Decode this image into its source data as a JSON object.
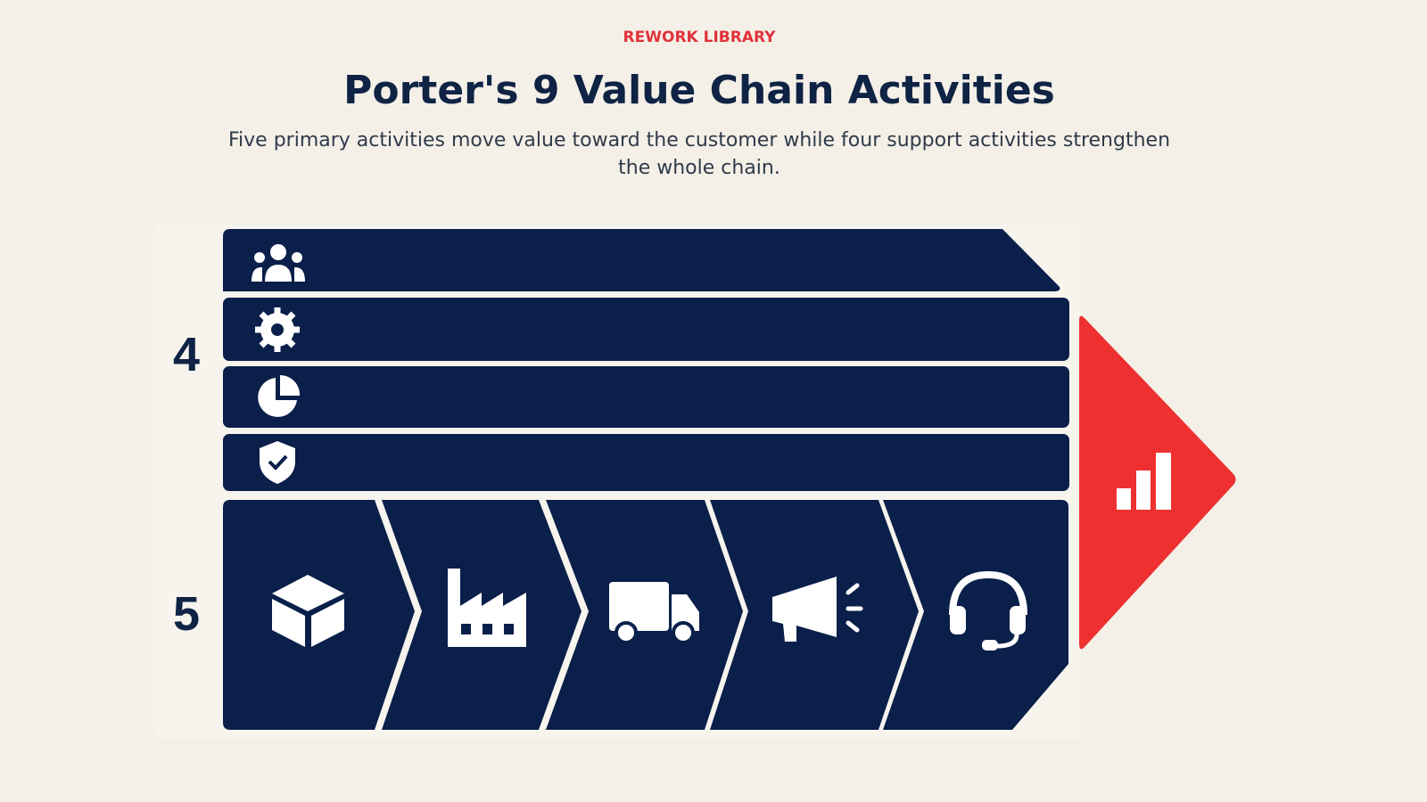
{
  "header": {
    "label": "REWORK LIBRARY",
    "title": "Porter's 9 Value Chain Activities",
    "subtitle": "Five primary activities move value toward the customer while four support activities strengthen the whole chain."
  },
  "diagram": {
    "support_count": "4",
    "primary_count": "5"
  }
}
